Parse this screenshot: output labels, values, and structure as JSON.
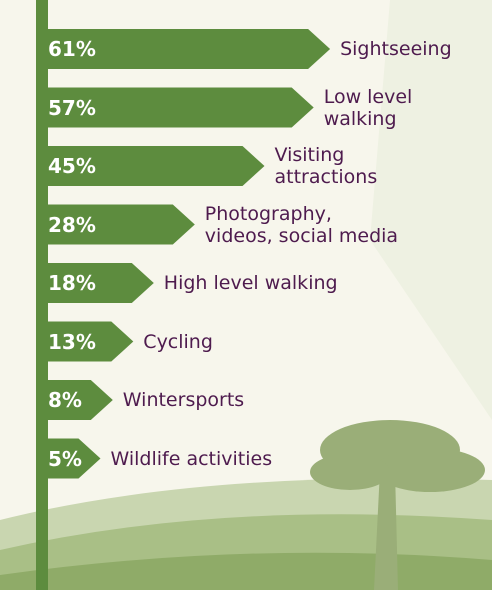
{
  "chart_data": {
    "type": "arrow-bar",
    "categories": [
      "Sightseeing",
      "Low level\nwalking",
      "Visiting\nattractions",
      "Photography,\nvideos, social media",
      "High level walking",
      "Cycling",
      "Wintersports",
      "Wildlife activities"
    ],
    "values": [
      61,
      57,
      45,
      28,
      18,
      13,
      8,
      5
    ],
    "value_labels": [
      "61%",
      "57%",
      "45%",
      "28%",
      "18%",
      "13%",
      "8%",
      "5%"
    ],
    "color": "#5d8c3e"
  }
}
